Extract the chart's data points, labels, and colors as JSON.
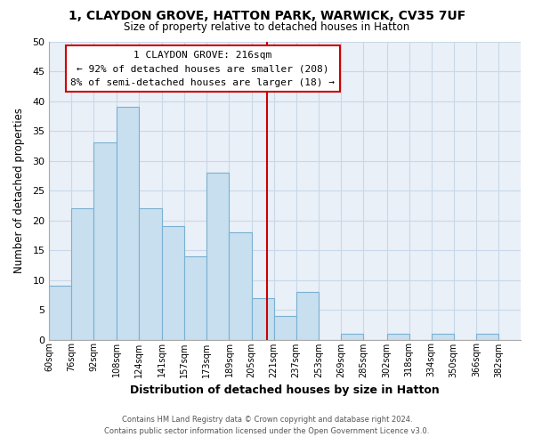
{
  "title": "1, CLAYDON GROVE, HATTON PARK, WARWICK, CV35 7UF",
  "subtitle": "Size of property relative to detached houses in Hatton",
  "xlabel": "Distribution of detached houses by size in Hatton",
  "ylabel": "Number of detached properties",
  "footer_line1": "Contains HM Land Registry data © Crown copyright and database right 2024.",
  "footer_line2": "Contains public sector information licensed under the Open Government Licence v3.0.",
  "annotation_title": "1 CLAYDON GROVE: 216sqm",
  "annotation_line1": "← 92% of detached houses are smaller (208)",
  "annotation_line2": "8% of semi-detached houses are larger (18) →",
  "vline_x": 216,
  "bar_edges": [
    60,
    76,
    92,
    108,
    124,
    141,
    157,
    173,
    189,
    205,
    221,
    237,
    253,
    269,
    285,
    302,
    318,
    334,
    350,
    366,
    382
  ],
  "bar_heights": [
    9,
    22,
    33,
    39,
    22,
    19,
    14,
    28,
    18,
    7,
    4,
    8,
    0,
    1,
    0,
    1,
    0,
    1,
    0,
    1
  ],
  "bar_color": "#c8dff0",
  "bar_edge_color": "#7ab0d0",
  "vline_color": "#cc0000",
  "grid_color": "#c8d8e8",
  "axes_bg_color": "#eaf0f8",
  "ylim": [
    0,
    50
  ],
  "yticks": [
    0,
    5,
    10,
    15,
    20,
    25,
    30,
    35,
    40,
    45,
    50
  ],
  "tick_labels": [
    "60sqm",
    "76sqm",
    "92sqm",
    "108sqm",
    "124sqm",
    "141sqm",
    "157sqm",
    "173sqm",
    "189sqm",
    "205sqm",
    "221sqm",
    "237sqm",
    "253sqm",
    "269sqm",
    "285sqm",
    "302sqm",
    "318sqm",
    "334sqm",
    "350sqm",
    "366sqm",
    "382sqm"
  ]
}
